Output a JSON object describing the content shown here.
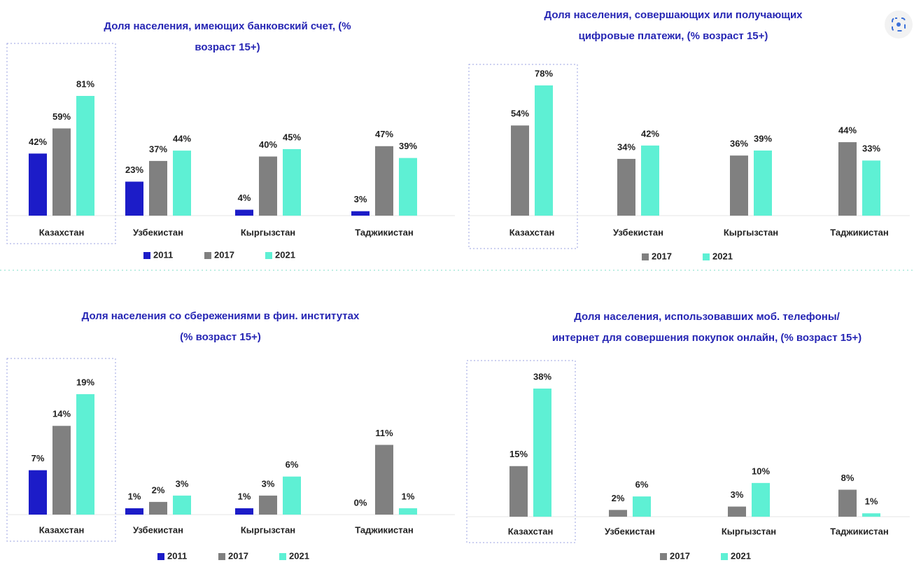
{
  "chart_data": [
    {
      "type": "bar",
      "title": [
        "Доля населения, имеющих банковский счет, (%",
        "возраст 15+)"
      ],
      "categories": [
        "Казахстан",
        "Узбекистан",
        "Кыргызстан",
        "Таджикистан"
      ],
      "series": [
        {
          "name": "2011",
          "color": "#1c1cc8",
          "values": [
            42,
            23,
            4,
            3
          ],
          "value_labels": [
            "42%",
            "23%",
            "4%",
            "3%"
          ]
        },
        {
          "name": "2017",
          "color": "#808080",
          "values": [
            59,
            37,
            40,
            47
          ],
          "value_labels": [
            "59%",
            "37%",
            "40%",
            "47%"
          ]
        },
        {
          "name": "2021",
          "color": "#5ef0d4",
          "values": [
            81,
            44,
            45,
            39
          ],
          "value_labels": [
            "81%",
            "44%",
            "45%",
            "39%"
          ]
        }
      ]
    },
    {
      "type": "bar",
      "title": [
        "Доля населения, совершающих или получающих",
        "цифровые платежи, (% возраст 15+)"
      ],
      "categories": [
        "Казахстан",
        "Узбекистан",
        "Кыргызстан",
        "Таджикистан"
      ],
      "series": [
        {
          "name": "2017",
          "color": "#808080",
          "values": [
            54,
            34,
            36,
            44
          ],
          "value_labels": [
            "54%",
            "34%",
            "36%",
            "44%"
          ]
        },
        {
          "name": "2021",
          "color": "#5ef0d4",
          "values": [
            78,
            42,
            39,
            33
          ],
          "value_labels": [
            "78%",
            "42%",
            "39%",
            "33%"
          ]
        }
      ]
    },
    {
      "type": "bar",
      "title": [
        "Доля населения со сбережениями в фин. институтах",
        "(% возраст 15+)"
      ],
      "categories": [
        "Казахстан",
        "Узбекистан",
        "Кыргызстан",
        "Таджикистан"
      ],
      "series": [
        {
          "name": "2011",
          "color": "#1c1cc8",
          "values": [
            7,
            1,
            1,
            0
          ],
          "value_labels": [
            "7%",
            "1%",
            "1%",
            "0%"
          ]
        },
        {
          "name": "2017",
          "color": "#808080",
          "values": [
            14,
            2,
            3,
            11
          ],
          "value_labels": [
            "14%",
            "2%",
            "3%",
            "11%"
          ]
        },
        {
          "name": "2021",
          "color": "#5ef0d4",
          "values": [
            19,
            3,
            6,
            1
          ],
          "value_labels": [
            "19%",
            "3%",
            "6%",
            "1%"
          ]
        }
      ]
    },
    {
      "type": "bar",
      "title": [
        "Доля населения, использовавших моб. телефоны/",
        "интернет для совершения покупок онлайн, (% возраст 15+)"
      ],
      "categories": [
        "Казахстан",
        "Узбекистан",
        "Кыргызстан",
        "Таджикистан"
      ],
      "series": [
        {
          "name": "2017",
          "color": "#808080",
          "values": [
            15,
            2,
            3,
            8
          ],
          "value_labels": [
            "15%",
            "2%",
            "3%",
            "8%"
          ]
        },
        {
          "name": "2021",
          "color": "#5ef0d4",
          "values": [
            38,
            6,
            10,
            1
          ],
          "value_labels": [
            "38%",
            "6%",
            "10%",
            "1%"
          ]
        }
      ]
    }
  ]
}
